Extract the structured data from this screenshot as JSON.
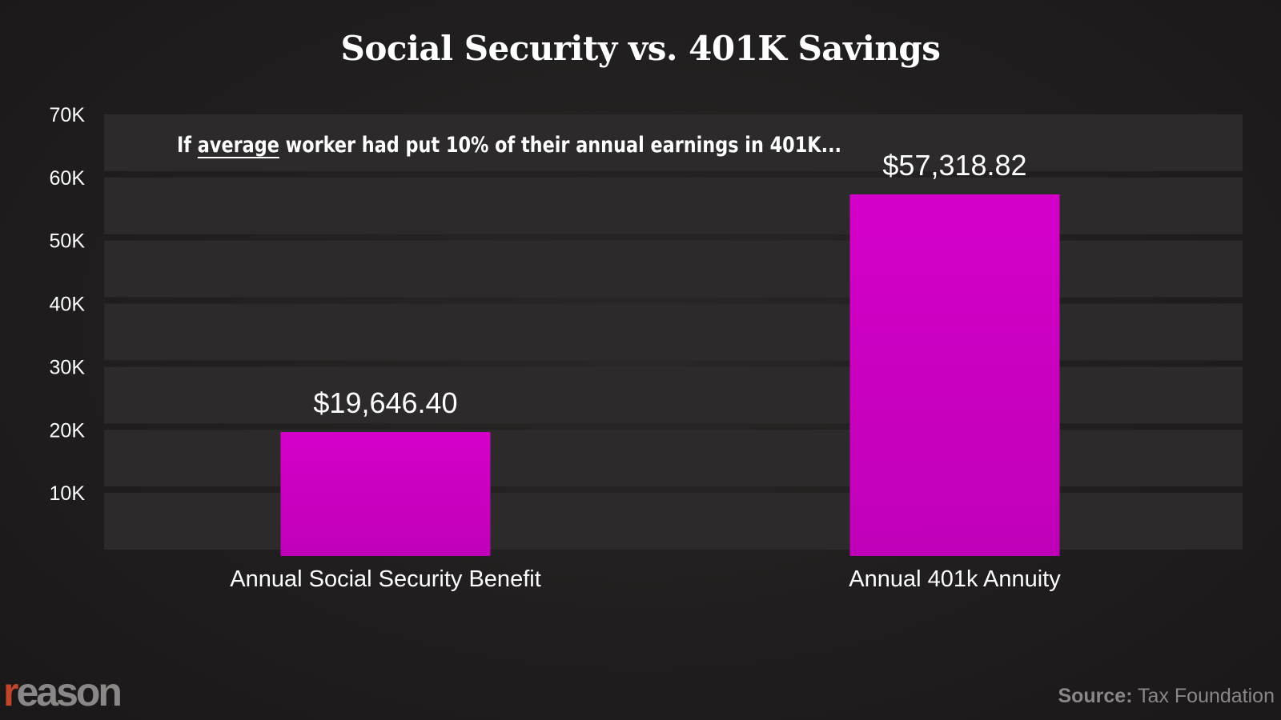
{
  "chart_data": {
    "type": "bar",
    "title": "Social Security vs. 401K Savings",
    "subtitle_parts": [
      "If ",
      "average",
      " worker had put 10% of their annual earnings in 401K..."
    ],
    "categories": [
      "Annual Social Security Benefit",
      "Annual 401k Annuity"
    ],
    "values": [
      19646.4,
      57318.82
    ],
    "value_labels": [
      "$19,646.40",
      "$57,318.82"
    ],
    "ylim": [
      0,
      70000
    ],
    "yticks": [
      10000,
      20000,
      30000,
      40000,
      50000,
      60000,
      70000
    ],
    "ytick_labels": [
      "10K",
      "20K",
      "30K",
      "40K",
      "50K",
      "60K",
      "70K"
    ],
    "xlabel": "",
    "ylabel": "",
    "grid": "banded",
    "colors": {
      "bar": "#d400c8",
      "bar_bottom": "#c000b8",
      "band": "#2c2a2a",
      "band_gap": "#1c1a1a",
      "text": "#ffffff",
      "tick_text": "#ffffff"
    }
  },
  "branding": {
    "logo_text": "reason",
    "logo_colors": {
      "accent": "#c0452b",
      "main": "#8a8787"
    }
  },
  "source": {
    "label": "Source:",
    "value": " Tax Foundation"
  }
}
